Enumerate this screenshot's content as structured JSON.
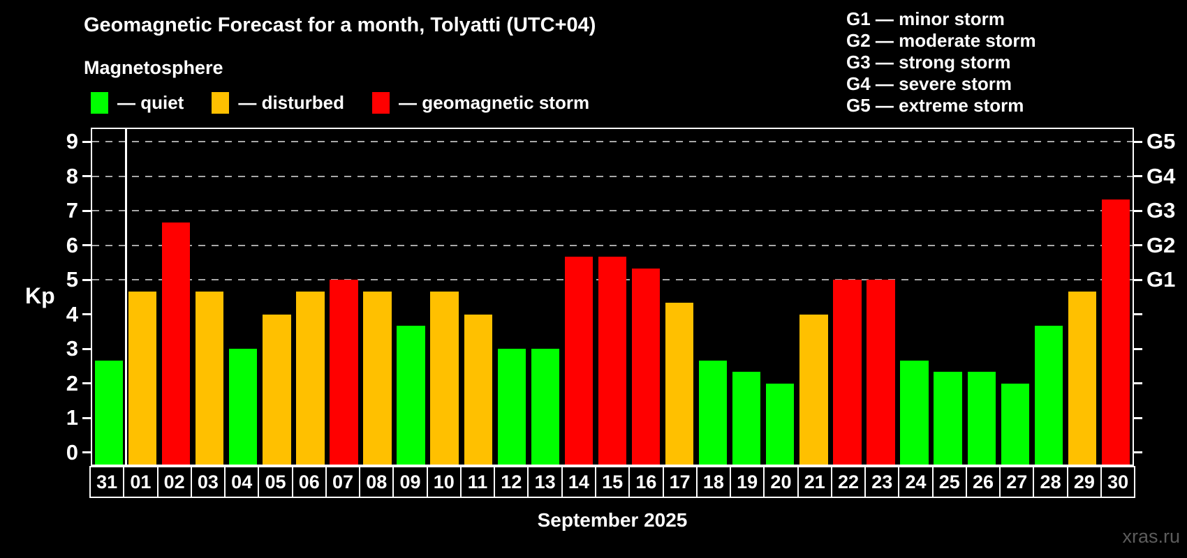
{
  "page": {
    "title": "Geomagnetic Forecast for a month, Tolyatti (UTC+04)",
    "subtitle": "Magnetosphere",
    "month_label": "September 2025",
    "watermark": "xras.ru"
  },
  "legend": {
    "items": [
      {
        "key": "quiet",
        "label": "— quiet",
        "color": "#00ff00"
      },
      {
        "key": "disturbed",
        "label": "— disturbed",
        "color": "#ffc000"
      },
      {
        "key": "storm",
        "label": "— geomagnetic storm",
        "color": "#ff0000"
      }
    ]
  },
  "storm_scale": {
    "items": [
      "G1 — minor storm",
      "G2 — moderate storm",
      "G3 — strong storm",
      "G4 — severe storm",
      "G5 — extreme storm"
    ]
  },
  "axis": {
    "ylabel": "Kp",
    "yticks": [
      0,
      1,
      2,
      3,
      4,
      5,
      6,
      7,
      8,
      9
    ],
    "right_labels": {
      "9": "G5",
      "8": "G4",
      "7": "G3",
      "6": "G2",
      "5": "G1"
    }
  },
  "chart_data": {
    "type": "bar",
    "title": "Geomagnetic Forecast for a month, Tolyatti (UTC+04)",
    "xlabel": "September 2025",
    "ylabel": "Kp",
    "ylim": [
      0,
      9
    ],
    "draw_range": [
      -0.35,
      9.37
    ],
    "grid": "horizontal dashed lines at Kp 5,6,7,8,9 (G1–G5 levels)",
    "gridlines": [
      5,
      6,
      7,
      8,
      9
    ],
    "legend_position": "top-left",
    "categories": [
      "31",
      "01",
      "02",
      "03",
      "04",
      "05",
      "06",
      "07",
      "08",
      "09",
      "10",
      "11",
      "12",
      "13",
      "14",
      "15",
      "16",
      "17",
      "18",
      "19",
      "20",
      "21",
      "22",
      "23",
      "24",
      "25",
      "26",
      "27",
      "28",
      "29",
      "30"
    ],
    "values": [
      2.67,
      4.67,
      6.67,
      4.67,
      3.0,
      4.0,
      4.67,
      5.0,
      4.67,
      3.67,
      4.67,
      4.0,
      3.0,
      3.0,
      5.67,
      5.67,
      5.33,
      4.33,
      2.67,
      2.33,
      2.0,
      4.0,
      5.0,
      5.0,
      2.67,
      2.33,
      2.33,
      2.0,
      3.67,
      4.67,
      7.33
    ],
    "statuses": [
      "quiet",
      "disturbed",
      "storm",
      "disturbed",
      "quiet",
      "disturbed",
      "disturbed",
      "storm",
      "disturbed",
      "quiet",
      "disturbed",
      "disturbed",
      "quiet",
      "quiet",
      "storm",
      "storm",
      "storm",
      "disturbed",
      "quiet",
      "quiet",
      "quiet",
      "disturbed",
      "storm",
      "storm",
      "quiet",
      "quiet",
      "quiet",
      "quiet",
      "quiet",
      "disturbed",
      "storm"
    ],
    "colors": {
      "quiet": "#00ff00",
      "disturbed": "#ffc000",
      "storm": "#ff0000"
    },
    "separator_after_index": 0
  }
}
